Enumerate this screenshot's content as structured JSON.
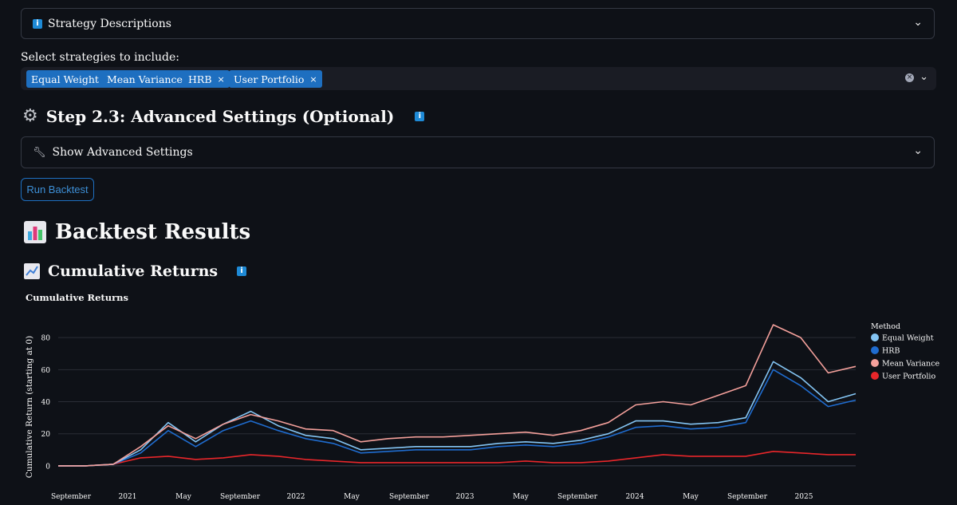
{
  "strategy_expander": {
    "label": "Strategy Descriptions",
    "icon": "info-icon"
  },
  "select_label": "Select strategies to include:",
  "selected_tags": [
    "Equal Weight",
    "Mean Variance",
    "HRB",
    "User Portfolio"
  ],
  "advanced_heading": "Step 2.3: Advanced Settings (Optional)",
  "advanced_expander": {
    "label": "Show Advanced Settings",
    "icon": "wrench-icon"
  },
  "run_button": "Run Backtest",
  "results_heading": "Backtest Results",
  "cumret_heading": "Cumulative Returns",
  "chart_data": {
    "type": "line",
    "title": "Cumulative Returns",
    "xlabel": "",
    "ylabel": "Cumulative Return (starting at 0)",
    "legend_title": "Method",
    "legend_position": "right",
    "ylim": [
      -8,
      94
    ],
    "yticks": [
      0,
      20,
      40,
      60,
      80
    ],
    "x_tick_labels": [
      "September",
      "2021",
      "May",
      "September",
      "2022",
      "May",
      "September",
      "2023",
      "May",
      "September",
      "2024",
      "May",
      "September",
      "2025"
    ],
    "x": [
      "2020-09",
      "2020-11",
      "2021-01",
      "2021-03",
      "2021-05",
      "2021-07",
      "2021-09",
      "2021-11",
      "2022-01",
      "2022-03",
      "2022-05",
      "2022-07",
      "2022-09",
      "2022-11",
      "2023-01",
      "2023-03",
      "2023-05",
      "2023-07",
      "2023-09",
      "2023-11",
      "2024-01",
      "2024-03",
      "2024-05",
      "2024-07",
      "2024-09",
      "2024-11",
      "2025-01",
      "2025-03",
      "2025-05",
      "2025-06"
    ],
    "series": [
      {
        "name": "Equal Weight",
        "color": "#84c5f4",
        "values": [
          0,
          0,
          1,
          10,
          27,
          15,
          26,
          34,
          25,
          19,
          17,
          10,
          11,
          12,
          12,
          12,
          14,
          15,
          14,
          16,
          20,
          28,
          28,
          26,
          27,
          30,
          65,
          55,
          40,
          45
        ]
      },
      {
        "name": "HRB",
        "color": "#1f6ccf",
        "values": [
          0,
          0,
          1,
          8,
          22,
          12,
          22,
          28,
          22,
          17,
          14,
          8,
          9,
          10,
          10,
          10,
          12,
          13,
          12,
          14,
          18,
          24,
          25,
          23,
          24,
          27,
          60,
          50,
          37,
          41
        ]
      },
      {
        "name": "Mean Variance",
        "color": "#f4a09b",
        "values": [
          0,
          0,
          1,
          12,
          25,
          17,
          26,
          32,
          28,
          23,
          22,
          15,
          17,
          18,
          18,
          19,
          20,
          21,
          19,
          22,
          27,
          38,
          40,
          38,
          44,
          50,
          88,
          80,
          58,
          62
        ]
      },
      {
        "name": "User Portfolio",
        "color": "#e8262a",
        "values": [
          0,
          0,
          1,
          5,
          6,
          4,
          5,
          7,
          6,
          4,
          3,
          2,
          2,
          2,
          2,
          2,
          2,
          3,
          2,
          2,
          3,
          5,
          7,
          6,
          6,
          6,
          9,
          8,
          7,
          7
        ]
      }
    ]
  }
}
